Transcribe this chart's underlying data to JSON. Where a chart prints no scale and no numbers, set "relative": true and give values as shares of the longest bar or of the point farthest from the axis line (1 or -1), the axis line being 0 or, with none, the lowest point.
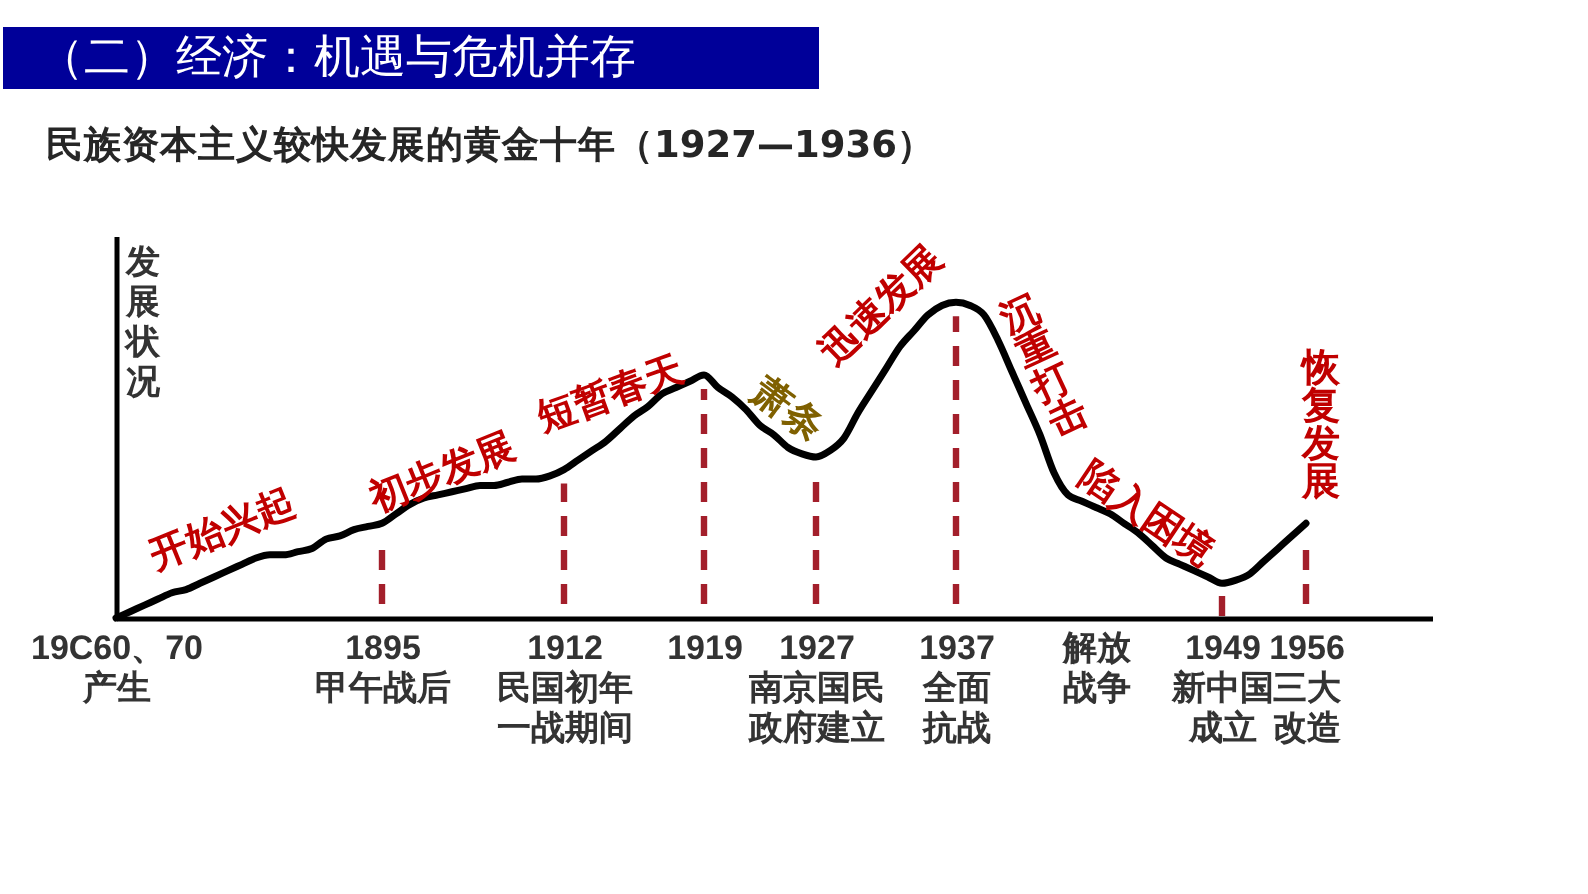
{
  "chart_data": {
    "type": "line",
    "title": "（二）经济：机遇与危机并存",
    "subtitle": "民族资本主义较快发展的黄金十年（1927—1936）",
    "ylabel": "发展状况",
    "relative": true,
    "categories": [
      "19C60、70\n产生",
      null,
      null,
      null,
      null,
      null,
      null,
      null,
      null,
      null,
      null,
      null,
      null,
      null,
      null,
      null,
      null,
      null,
      null,
      "1895\n甲午战后",
      null,
      null,
      null,
      null,
      null,
      null,
      null,
      null,
      null,
      null,
      null,
      null,
      "1912\n民国初年一战期间",
      null,
      null,
      null,
      null,
      null,
      null,
      null,
      null,
      null,
      "1919",
      null,
      null,
      null,
      null,
      null,
      null,
      null,
      "1927\n南京国民政府建立",
      null,
      null,
      null,
      null,
      null,
      null,
      null,
      null,
      null,
      "1937\n全面抗战",
      null,
      null,
      null,
      null,
      null,
      null,
      null,
      null,
      null,
      "解放战争",
      null,
      null,
      null,
      null,
      null,
      null,
      null,
      null,
      "1949\n新中国成立",
      null,
      null,
      null,
      null,
      null,
      "1956\n三大改造",
      null,
      null,
      null,
      null,
      null,
      null,
      null,
      null,
      null
    ],
    "series": [
      {
        "color": "#000000",
        "values": [
          0,
          0.02,
          0.04,
          0.06,
          0.08,
          0.09,
          0.11,
          0.13,
          0.15,
          0.17,
          0.19,
          0.2,
          0.2,
          0.21,
          0.22,
          0.25,
          0.26,
          0.28,
          0.29,
          0.3,
          0.33,
          0.36,
          0.38,
          0.39,
          0.4,
          0.41,
          0.42,
          0.42,
          0.43,
          0.44,
          0.44,
          0.45,
          0.47,
          0.5,
          0.53,
          0.56,
          0.6,
          0.64,
          0.67,
          0.71,
          0.73,
          0.75,
          0.77,
          0.73,
          0.7,
          0.66,
          0.61,
          0.58,
          0.54,
          0.52,
          0.51,
          0.53,
          0.57,
          0.65,
          0.72,
          0.79,
          0.86,
          0.91,
          0.96,
          0.99,
          1.0,
          0.99,
          0.96,
          0.88,
          0.78,
          0.68,
          0.58,
          0.46,
          0.39,
          0.37,
          0.35,
          0.33,
          0.3,
          0.27,
          0.23,
          0.19,
          0.17,
          0.15,
          0.13,
          0.11,
          0.12,
          0.14,
          0.18,
          0.22,
          0.26,
          0.3,
          null,
          null,
          null,
          null,
          null,
          null,
          null,
          null,
          null
        ]
      }
    ],
    "ref_lines": [
      {
        "axis": "x",
        "value": "1895\n甲午战后",
        "color": "#a31f2b",
        "line_style": "dashed"
      },
      {
        "axis": "x",
        "value": "1912\n民国初年一战期间",
        "color": "#a31f2b",
        "line_style": "dashed"
      },
      {
        "axis": "x",
        "value": "1919",
        "color": "#a31f2b",
        "line_style": "dashed"
      },
      {
        "axis": "x",
        "value": "1927\n南京国民政府建立",
        "color": "#a31f2b",
        "line_style": "dashed"
      },
      {
        "axis": "x",
        "value": "1937\n全面抗战",
        "color": "#a31f2b",
        "line_style": "dashed"
      },
      {
        "axis": "x",
        "value": "1949\n新中国成立",
        "color": "#a31f2b",
        "line_style": "dashed"
      },
      {
        "axis": "x",
        "value": "1956\n三大改造",
        "color": "#a31f2b",
        "line_style": "dashed"
      }
    ],
    "annotations": [
      "开始兴起",
      "初步发展",
      "短暂春天",
      "萧条",
      "迅速发展",
      "沉重打击",
      "陷入困境",
      "恢复发展"
    ]
  }
}
